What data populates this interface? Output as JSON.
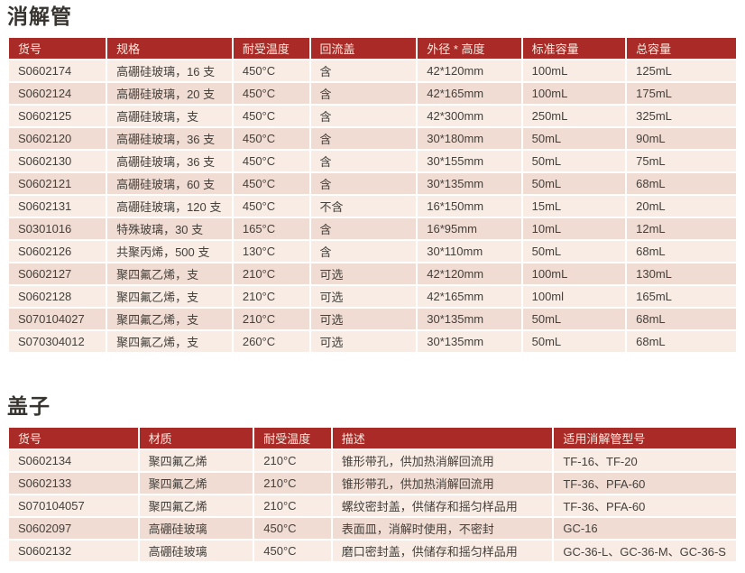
{
  "colors": {
    "header-bg": "#a92a26",
    "header-text": "#f7ebe2",
    "row-light": "#f8ece4",
    "row-dark": "#f0dcd2",
    "cell-text": "#44403c",
    "title-text": "#383430",
    "divider": "#ffffff",
    "page-bg": "#ffffff"
  },
  "tables": [
    {
      "title": "消解管",
      "columns": [
        "货号",
        "规格",
        "耐受温度",
        "回流盖",
        "外径 * 高度",
        "标准容量",
        "总容量"
      ],
      "col_widths": [
        "13.5%",
        "17.3%",
        "10.6%",
        "14.7%",
        "14.4%",
        "14.3%",
        "15.2%"
      ],
      "rows": [
        [
          "S0602174",
          "高硼硅玻璃，16 支",
          "450°C",
          "含",
          "42*120mm",
          "100mL",
          "125mL"
        ],
        [
          "S0602124",
          "高硼硅玻璃，20 支",
          "450°C",
          "含",
          "42*165mm",
          "100mL",
          "175mL"
        ],
        [
          "S0602125",
          "高硼硅玻璃，支",
          "450°C",
          "含",
          "42*300mm",
          "250mL",
          "325mL"
        ],
        [
          "S0602120",
          "高硼硅玻璃，36 支",
          "450°C",
          "含",
          "30*180mm",
          "50mL",
          "90mL"
        ],
        [
          "S0602130",
          "高硼硅玻璃，36 支",
          "450°C",
          "含",
          "30*155mm",
          "50mL",
          "75mL"
        ],
        [
          "S0602121",
          "高硼硅玻璃，60 支",
          "450°C",
          "含",
          "30*135mm",
          "50mL",
          "68mL"
        ],
        [
          "S0602131",
          "高硼硅玻璃，120 支",
          "450°C",
          "不含",
          "16*150mm",
          "15mL",
          "20mL"
        ],
        [
          "S0301016",
          "特殊玻璃，30 支",
          "165°C",
          "含",
          "16*95mm",
          "10mL",
          "12mL"
        ],
        [
          "S0602126",
          "共聚丙烯，500 支",
          "130°C",
          "含",
          "30*110mm",
          "50mL",
          "68mL"
        ],
        [
          "S0602127",
          "聚四氟乙烯，支",
          "210°C",
          "可选",
          "42*120mm",
          "100mL",
          "130mL"
        ],
        [
          "S0602128",
          "聚四氟乙烯，支",
          "210°C",
          "可选",
          "42*165mm",
          "100ml",
          "165mL"
        ],
        [
          "S070104027",
          "聚四氟乙烯，支",
          "210°C",
          "可选",
          "30*135mm",
          "50mL",
          "68mL"
        ],
        [
          "S070304012",
          "聚四氟乙烯，支",
          "260°C",
          "可选",
          "30*135mm",
          "50mL",
          "68mL"
        ]
      ]
    },
    {
      "title": "盖子",
      "columns": [
        "货号",
        "材质",
        "耐受温度",
        "描述",
        "适用消解管型号"
      ],
      "col_widths": [
        "17.9%",
        "15.8%",
        "10.7%",
        "30.4%",
        "25.2%"
      ],
      "rows": [
        [
          "S0602134",
          "聚四氟乙烯",
          "210°C",
          "锥形带孔，供加热消解回流用",
          "TF-16、TF-20"
        ],
        [
          "S0602133",
          "聚四氟乙烯",
          "210°C",
          "锥形带孔，供加热消解回流用",
          "TF-36、PFA-60"
        ],
        [
          "S070104057",
          "聚四氟乙烯",
          "210°C",
          "螺纹密封盖，供储存和摇匀样品用",
          "TF-36、PFA-60"
        ],
        [
          "S0602097",
          "高硼硅玻璃",
          "450°C",
          "表面皿，消解时使用，不密封",
          "GC-16"
        ],
        [
          "S0602132",
          "高硼硅玻璃",
          "450°C",
          "磨口密封盖，供储存和摇匀样品用",
          "GC-36-L、GC-36-M、GC-36-S"
        ]
      ]
    }
  ]
}
